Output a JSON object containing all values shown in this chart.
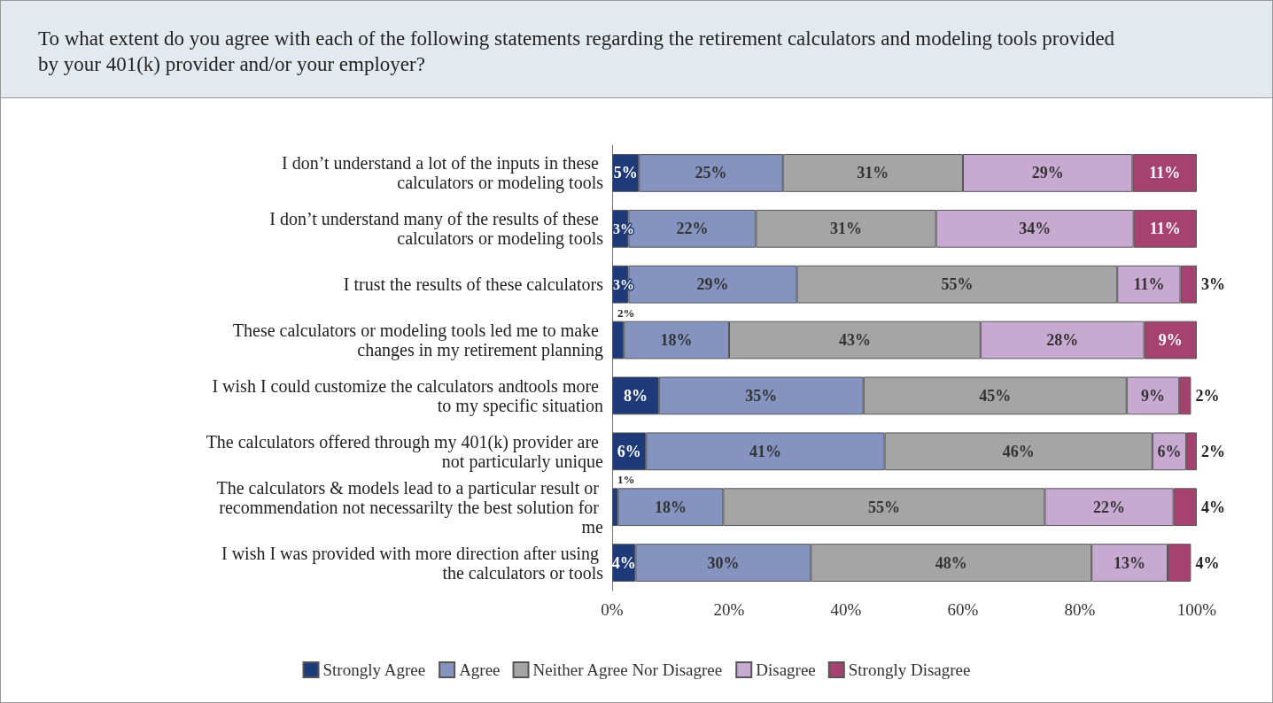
{
  "chart_data": {
    "type": "bar",
    "orientation": "horizontal",
    "stacked": true,
    "title": "To what extent do you agree with each of the following statements regarding the retirement calculators and modeling tools provided by your 401(k) provider and/or your employer?",
    "categories": [
      "I don’t understand a lot of the inputs in these calculators or modeling tools",
      "I don’t understand many of the results of these calculators or modeling tools",
      "I trust the results of these calculators",
      "These calculators or modeling tools led me to make changes in my retirement planning",
      "I wish I could customize the calculators andtools more to my specific situation",
      "The calculators offered through my 401(k) provider are not particularly unique",
      "The calculators & models lead to a particular result or recommendation not necessarilty the best solution for me",
      "I wish I was provided with more direction after using the calculators or tools"
    ],
    "series": [
      {
        "name": "Strongly Agree",
        "color": "#1f3a78",
        "values": [
          4.6,
          2.8,
          2.8,
          2,
          8,
          5.8,
          1,
          4
        ],
        "value_labels": [
          "5%",
          "3%",
          "3%",
          "2%",
          "8%",
          "6%",
          "1%",
          "4%"
        ]
      },
      {
        "name": "Agree",
        "color": "#8493bf",
        "values": [
          24.6,
          21.8,
          28.8,
          18,
          35,
          40.8,
          18,
          30
        ],
        "value_labels": [
          "25%",
          "22%",
          "29%",
          "18%",
          "35%",
          "41%",
          "18%",
          "30%"
        ]
      },
      {
        "name": "Neither Agree Nor Disagree",
        "color": "#a5a5a5",
        "values": [
          30.8,
          30.8,
          54.8,
          43,
          45,
          45.8,
          55,
          48
        ],
        "value_labels": [
          "31%",
          "31%",
          "55%",
          "43%",
          "45%",
          "46%",
          "55%",
          "48%"
        ]
      },
      {
        "name": "Disagree",
        "color": "#c8a9d2",
        "values": [
          29,
          33.8,
          10.8,
          28,
          9,
          5.8,
          22,
          13
        ],
        "value_labels": [
          "29%",
          "34%",
          "11%",
          "28%",
          "9%",
          "6%",
          "22%",
          "13%"
        ]
      },
      {
        "name": "Strongly Disagree",
        "color": "#a6426f",
        "values": [
          11,
          10.8,
          2.8,
          9,
          2,
          1.8,
          4,
          4
        ],
        "value_labels": [
          "11%",
          "11%",
          "3%",
          "9%",
          "2%",
          "2%",
          "4%",
          "4%"
        ]
      }
    ],
    "xlim": [
      0,
      100
    ],
    "xticks": [
      {
        "value": 0,
        "label": "0%"
      },
      {
        "value": 20,
        "label": "20%"
      },
      {
        "value": 40,
        "label": "40%"
      },
      {
        "value": 60,
        "label": "60%"
      },
      {
        "value": 80,
        "label": "80%"
      },
      {
        "value": 100,
        "label": "100%"
      }
    ],
    "grid": false,
    "legend": "bottom"
  }
}
